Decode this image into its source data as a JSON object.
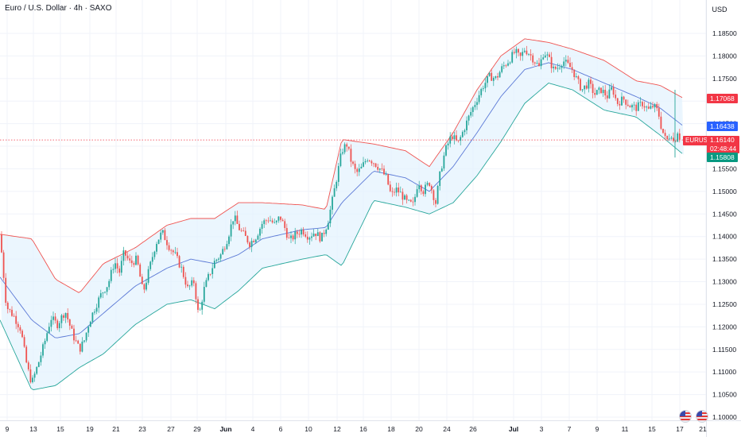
{
  "header": {
    "title": "Euro / U.S. Dollar · 4h · SAXO",
    "currency": "USD"
  },
  "colors": {
    "up": "#26a69a",
    "down": "#ef5350",
    "upper_band": "#ef5350",
    "lower_band": "#26a69a",
    "basis": "#5b79d6",
    "band_fill": "#e3f2fd",
    "last_price": "#f23645",
    "blue_tag": "#2962ff",
    "green_tag": "#089981"
  },
  "price_tags": {
    "upper": "1.17068",
    "basis": "1.16438",
    "symbol": "EURUSD",
    "last": "1.16140",
    "countdown": "02:48:44",
    "lower": "1.15808"
  },
  "chart_data": {
    "type": "candlestick",
    "symbol": "EURUSD",
    "interval": "4h",
    "overlay": "Bollinger Bands",
    "y_axis": {
      "min": 1.1,
      "max": 1.1885,
      "ticks": [
        "1.18500",
        "1.18000",
        "1.17500",
        "1.17000",
        "1.16500",
        "1.16000",
        "1.15500",
        "1.15000",
        "1.14500",
        "1.14000",
        "1.13500",
        "1.13000",
        "1.12500",
        "1.12000",
        "1.11500",
        "1.11000",
        "1.10500",
        "1.10000"
      ]
    },
    "x_axis": {
      "ticks": [
        "9",
        "13",
        "15",
        "19",
        "21",
        "23",
        "27",
        "29",
        "Jun",
        "4",
        "6",
        "10",
        "12",
        "16",
        "18",
        "20",
        "24",
        "26",
        "Jul",
        "3",
        "7",
        "9",
        "11",
        "15",
        "17",
        "21"
      ]
    },
    "close_path": [
      [
        0,
        1.1405
      ],
      [
        8,
        1.1245
      ],
      [
        18,
        1.1222
      ],
      [
        26,
        1.1195
      ],
      [
        34,
        1.1112
      ],
      [
        40,
        1.1075
      ],
      [
        48,
        1.1118
      ],
      [
        56,
        1.1165
      ],
      [
        64,
        1.122
      ],
      [
        72,
        1.1205
      ],
      [
        82,
        1.1235
      ],
      [
        92,
        1.118
      ],
      [
        100,
        1.115
      ],
      [
        106,
        1.117
      ],
      [
        112,
        1.121
      ],
      [
        120,
        1.1245
      ],
      [
        128,
        1.1275
      ],
      [
        136,
        1.1295
      ],
      [
        144,
        1.1345
      ],
      [
        150,
        1.132
      ],
      [
        156,
        1.1365
      ],
      [
        164,
        1.134
      ],
      [
        172,
        1.135
      ],
      [
        180,
        1.1275
      ],
      [
        188,
        1.133
      ],
      [
        196,
        1.1385
      ],
      [
        204,
        1.141
      ],
      [
        212,
        1.138
      ],
      [
        220,
        1.136
      ],
      [
        228,
        1.133
      ],
      [
        236,
        1.1285
      ],
      [
        244,
        1.13
      ],
      [
        250,
        1.122
      ],
      [
        256,
        1.128
      ],
      [
        262,
        1.131
      ],
      [
        270,
        1.1345
      ],
      [
        278,
        1.136
      ],
      [
        286,
        1.1395
      ],
      [
        294,
        1.1445
      ],
      [
        300,
        1.142
      ],
      [
        306,
        1.1405
      ],
      [
        314,
        1.1385
      ],
      [
        322,
        1.14
      ],
      [
        330,
        1.143
      ],
      [
        338,
        1.144
      ],
      [
        346,
        1.1425
      ],
      [
        352,
        1.1445
      ],
      [
        358,
        1.142
      ],
      [
        364,
        1.139
      ],
      [
        372,
        1.1405
      ],
      [
        380,
        1.1415
      ],
      [
        388,
        1.14
      ],
      [
        396,
        1.141
      ],
      [
        404,
        1.1395
      ],
      [
        412,
        1.143
      ],
      [
        418,
        1.148
      ],
      [
        424,
        1.1535
      ],
      [
        430,
        1.159
      ],
      [
        436,
        1.1605
      ],
      [
        442,
        1.1565
      ],
      [
        448,
        1.154
      ],
      [
        454,
        1.155
      ],
      [
        462,
        1.1575
      ],
      [
        470,
        1.1565
      ],
      [
        478,
        1.155
      ],
      [
        486,
        1.153
      ],
      [
        492,
        1.149
      ],
      [
        498,
        1.1505
      ],
      [
        504,
        1.1495
      ],
      [
        512,
        1.1475
      ],
      [
        520,
        1.147
      ],
      [
        526,
        1.1525
      ],
      [
        532,
        1.15
      ],
      [
        540,
        1.152
      ],
      [
        548,
        1.1475
      ],
      [
        554,
        1.1545
      ],
      [
        560,
        1.159
      ],
      [
        568,
        1.1625
      ],
      [
        576,
        1.1605
      ],
      [
        584,
        1.164
      ],
      [
        592,
        1.1675
      ],
      [
        600,
        1.1705
      ],
      [
        608,
        1.1735
      ],
      [
        616,
        1.1755
      ],
      [
        624,
        1.175
      ],
      [
        632,
        1.1775
      ],
      [
        640,
        1.179
      ],
      [
        648,
        1.181
      ],
      [
        654,
        1.1795
      ],
      [
        660,
        1.1815
      ],
      [
        666,
        1.1805
      ],
      [
        672,
        1.179
      ],
      [
        678,
        1.1775
      ],
      [
        684,
        1.181
      ],
      [
        690,
        1.1795
      ],
      [
        696,
        1.177
      ],
      [
        702,
        1.1775
      ],
      [
        708,
        1.179
      ],
      [
        714,
        1.178
      ],
      [
        720,
        1.177
      ],
      [
        726,
        1.1745
      ],
      [
        732,
        1.1725
      ],
      [
        740,
        1.174
      ],
      [
        748,
        1.1715
      ],
      [
        756,
        1.1725
      ],
      [
        764,
        1.171
      ],
      [
        770,
        1.173
      ],
      [
        776,
        1.1695
      ],
      [
        784,
        1.1705
      ],
      [
        792,
        1.169
      ],
      [
        800,
        1.1685
      ],
      [
        808,
        1.1695
      ],
      [
        816,
        1.168
      ],
      [
        822,
        1.169
      ],
      [
        828,
        1.1675
      ],
      [
        832,
        1.164
      ],
      [
        838,
        1.161
      ],
      [
        844,
        1.163
      ],
      [
        848,
        1.1605
      ],
      [
        852,
        1.1635
      ],
      [
        856,
        1.1614
      ]
    ],
    "bollinger": {
      "upper_path": [
        [
          0,
          1.1405
        ],
        [
          40,
          1.1395
        ],
        [
          70,
          1.1305
        ],
        [
          100,
          1.1275
        ],
        [
          130,
          1.134
        ],
        [
          170,
          1.1375
        ],
        [
          210,
          1.1425
        ],
        [
          240,
          1.144
        ],
        [
          270,
          1.144
        ],
        [
          300,
          1.1475
        ],
        [
          330,
          1.1475
        ],
        [
          380,
          1.147
        ],
        [
          410,
          1.146
        ],
        [
          430,
          1.1615
        ],
        [
          470,
          1.1605
        ],
        [
          510,
          1.159
        ],
        [
          540,
          1.1555
        ],
        [
          570,
          1.163
        ],
        [
          600,
          1.1725
        ],
        [
          630,
          1.18
        ],
        [
          660,
          1.1838
        ],
        [
          690,
          1.183
        ],
        [
          720,
          1.1815
        ],
        [
          760,
          1.179
        ],
        [
          800,
          1.1745
        ],
        [
          830,
          1.1735
        ],
        [
          860,
          1.1706
        ]
      ],
      "basis_path": [
        [
          0,
          1.131
        ],
        [
          40,
          1.1215
        ],
        [
          70,
          1.1175
        ],
        [
          100,
          1.1185
        ],
        [
          130,
          1.123
        ],
        [
          170,
          1.129
        ],
        [
          210,
          1.133
        ],
        [
          240,
          1.135
        ],
        [
          270,
          1.134
        ],
        [
          300,
          1.136
        ],
        [
          330,
          1.1395
        ],
        [
          380,
          1.1415
        ],
        [
          410,
          1.142
        ],
        [
          430,
          1.1475
        ],
        [
          470,
          1.1545
        ],
        [
          510,
          1.153
        ],
        [
          540,
          1.15
        ],
        [
          570,
          1.1555
        ],
        [
          600,
          1.163
        ],
        [
          630,
          1.171
        ],
        [
          660,
          1.177
        ],
        [
          690,
          1.1785
        ],
        [
          720,
          1.177
        ],
        [
          760,
          1.174
        ],
        [
          800,
          1.171
        ],
        [
          830,
          1.1685
        ],
        [
          860,
          1.1644
        ]
      ],
      "lower_path": [
        [
          0,
          1.1215
        ],
        [
          40,
          1.106
        ],
        [
          70,
          1.107
        ],
        [
          100,
          1.111
        ],
        [
          130,
          1.114
        ],
        [
          170,
          1.1205
        ],
        [
          210,
          1.125
        ],
        [
          240,
          1.126
        ],
        [
          270,
          1.124
        ],
        [
          300,
          1.128
        ],
        [
          330,
          1.133
        ],
        [
          380,
          1.135
        ],
        [
          410,
          1.136
        ],
        [
          430,
          1.1335
        ],
        [
          470,
          1.148
        ],
        [
          510,
          1.1465
        ],
        [
          540,
          1.145
        ],
        [
          570,
          1.1475
        ],
        [
          600,
          1.1535
        ],
        [
          630,
          1.161
        ],
        [
          660,
          1.1695
        ],
        [
          690,
          1.174
        ],
        [
          720,
          1.1725
        ],
        [
          760,
          1.168
        ],
        [
          800,
          1.1665
        ],
        [
          830,
          1.1625
        ],
        [
          860,
          1.1581
        ]
      ]
    }
  }
}
